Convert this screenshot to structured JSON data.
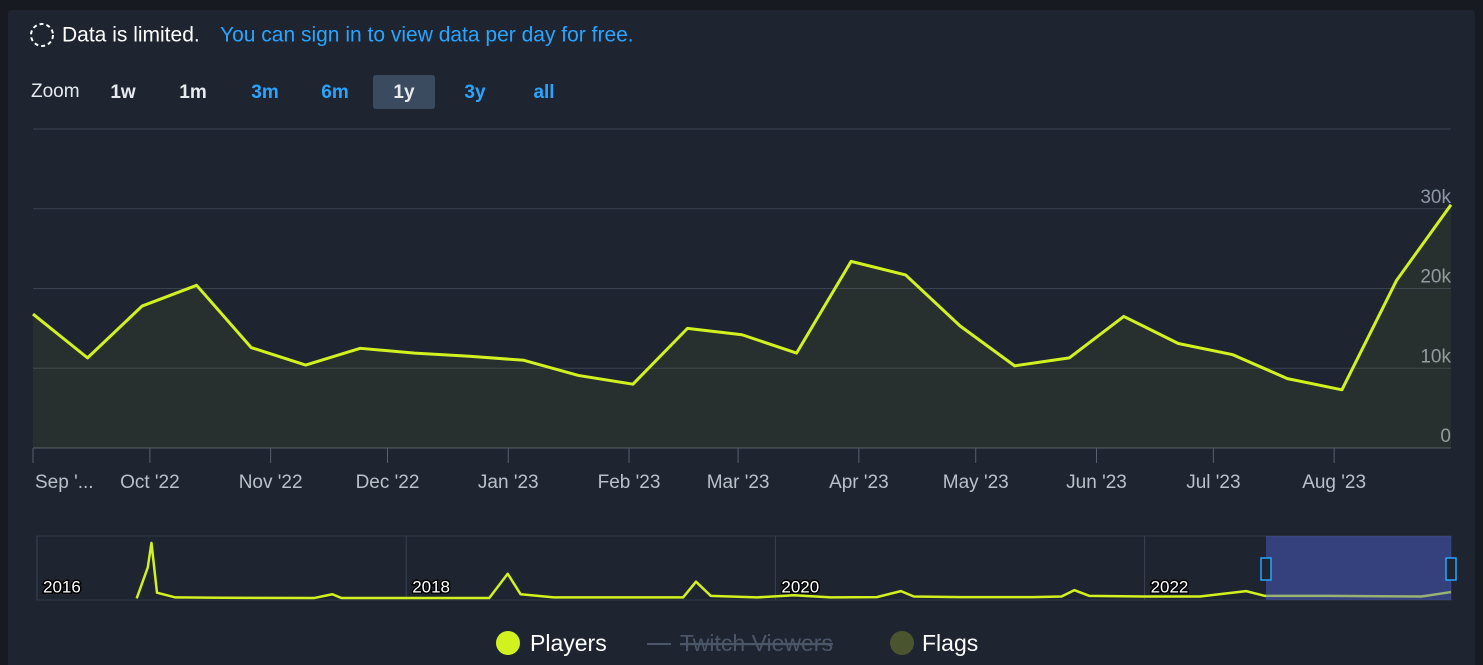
{
  "notice": {
    "text": "Data is limited.",
    "link": "You can sign in to view data per day for free."
  },
  "zoom": {
    "label": "Zoom",
    "buttons": [
      "1w",
      "1m",
      "3m",
      "6m",
      "1y",
      "3y",
      "all"
    ]
  },
  "chart_data": {
    "type": "line",
    "x": [
      0,
      14,
      28,
      42,
      56,
      70,
      84,
      98,
      112,
      126,
      140,
      154,
      168,
      182,
      196,
      210,
      224,
      238,
      252,
      266,
      280,
      294,
      308,
      322,
      336,
      350,
      364
    ],
    "xlim": [
      0,
      364
    ],
    "xticks": [
      {
        "value": 0,
        "label": "Sep '..."
      },
      {
        "value": 30,
        "label": "Oct '22"
      },
      {
        "value": 61,
        "label": "Nov '22"
      },
      {
        "value": 91,
        "label": "Dec '22"
      },
      {
        "value": 122,
        "label": "Jan '23"
      },
      {
        "value": 153,
        "label": "Feb '23"
      },
      {
        "value": 181,
        "label": "Mar '23"
      },
      {
        "value": 212,
        "label": "Apr '23"
      },
      {
        "value": 242,
        "label": "May '23"
      },
      {
        "value": 273,
        "label": "Jun '23"
      },
      {
        "value": 303,
        "label": "Jul '23"
      },
      {
        "value": 334,
        "label": "Aug '23"
      }
    ],
    "ylim": [
      0,
      40000
    ],
    "yticks": [
      0,
      {
        "value": 10000,
        "label": "10k"
      },
      {
        "value": 20000,
        "label": "20k"
      },
      {
        "value": 30000,
        "label": "30k"
      }
    ],
    "grid": true,
    "series": [
      {
        "name": "Players",
        "color": "#d2f21f",
        "values": [
          16800,
          11300,
          17800,
          20400,
          12600,
          10400,
          12500,
          11900,
          11500,
          11000,
          9100,
          8000,
          15000,
          14200,
          11900,
          23400,
          21700,
          15300,
          10300,
          11300,
          16500,
          13100,
          11700,
          8700,
          7300,
          21000,
          30500
        ]
      }
    ],
    "legend": [
      {
        "name": "Twitch Viewers",
        "color": "#4b5668",
        "hidden": true
      },
      {
        "name": "Flags",
        "color": "#4a5530"
      }
    ]
  },
  "navigator": {
    "type": "line",
    "color": "#d2f21f",
    "x": [
      2016.54,
      2016.6,
      2016.62,
      2016.65,
      2016.75,
      2017.0,
      2017.5,
      2017.6,
      2017.65,
      2018.0,
      2018.45,
      2018.55,
      2018.62,
      2018.8,
      2019.5,
      2019.57,
      2019.65,
      2019.9,
      2020.1,
      2020.3,
      2020.55,
      2020.68,
      2020.75,
      2021.0,
      2021.4,
      2021.55,
      2021.62,
      2021.7,
      2022.0,
      2022.3,
      2022.55,
      2022.65,
      2023.0,
      2023.5,
      2023.66
    ],
    "values": [
      2000,
      100000,
      178000,
      20000,
      5000,
      4000,
      3000,
      15000,
      3000,
      3000,
      3000,
      80000,
      15000,
      5000,
      5000,
      55000,
      10000,
      5000,
      12000,
      5000,
      6000,
      25000,
      8000,
      6000,
      6000,
      8000,
      28000,
      10000,
      8000,
      8000,
      25000,
      10000,
      10000,
      8000,
      22000
    ],
    "xlim": [
      2016,
      2023.66
    ],
    "ylim": [
      0,
      200000
    ],
    "xticks": [
      2016,
      2018,
      2020,
      2022
    ]
  }
}
